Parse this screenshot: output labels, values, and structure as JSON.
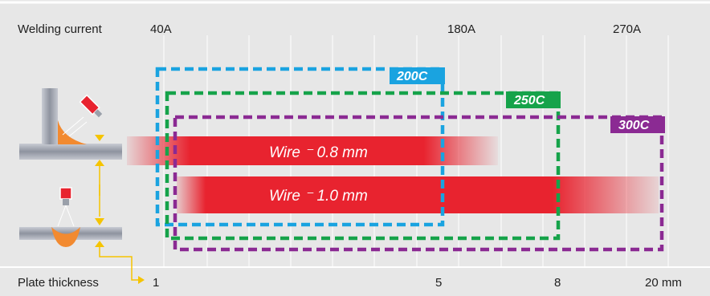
{
  "header": {
    "welding_current_label": "Welding current"
  },
  "footer": {
    "plate_thickness_label": "Plate thickness"
  },
  "current_ticks": [
    "40A",
    "180A",
    "270A"
  ],
  "thickness_ticks": [
    "1",
    "5",
    "8",
    "20 mm"
  ],
  "models": [
    {
      "name": "200C",
      "color": "#1aa3e0"
    },
    {
      "name": "250C",
      "color": "#16a34a"
    },
    {
      "name": "300C",
      "color": "#8b2a93"
    }
  ],
  "wires": [
    {
      "label": "Wire ⁻ 0.8 mm"
    },
    {
      "label": "Wire ⁻ 1.0 mm"
    }
  ],
  "colors": {
    "band": "#e8232f",
    "background": "#e7e7e7",
    "grid": "#ffffff",
    "arrow": "#f5c400"
  },
  "icons": [
    "fillet-weld-icon",
    "butt-weld-icon"
  ]
}
